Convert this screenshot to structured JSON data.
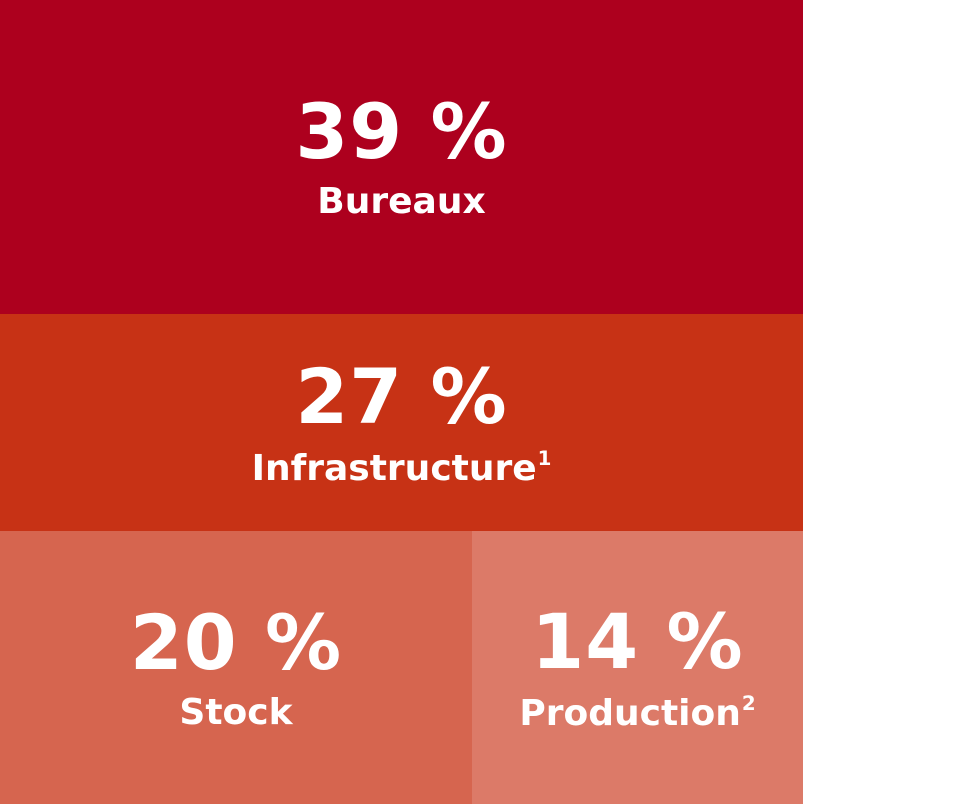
{
  "chart_data": {
    "type": "treemap",
    "unit": "%",
    "items": [
      {
        "value": 39,
        "value_label": "39 %",
        "label": "Bureaux",
        "footnote": "",
        "color": "#AD001E"
      },
      {
        "value": 27,
        "value_label": "27 %",
        "label": "Infrastructure",
        "footnote": "1",
        "color": "#C73215"
      },
      {
        "value": 20,
        "value_label": "20 %",
        "label": "Stock",
        "footnote": "",
        "color": "#D6654F"
      },
      {
        "value": 14,
        "value_label": "14 %",
        "label": "Production",
        "footnote": "2",
        "color": "#DC7A68"
      }
    ]
  }
}
